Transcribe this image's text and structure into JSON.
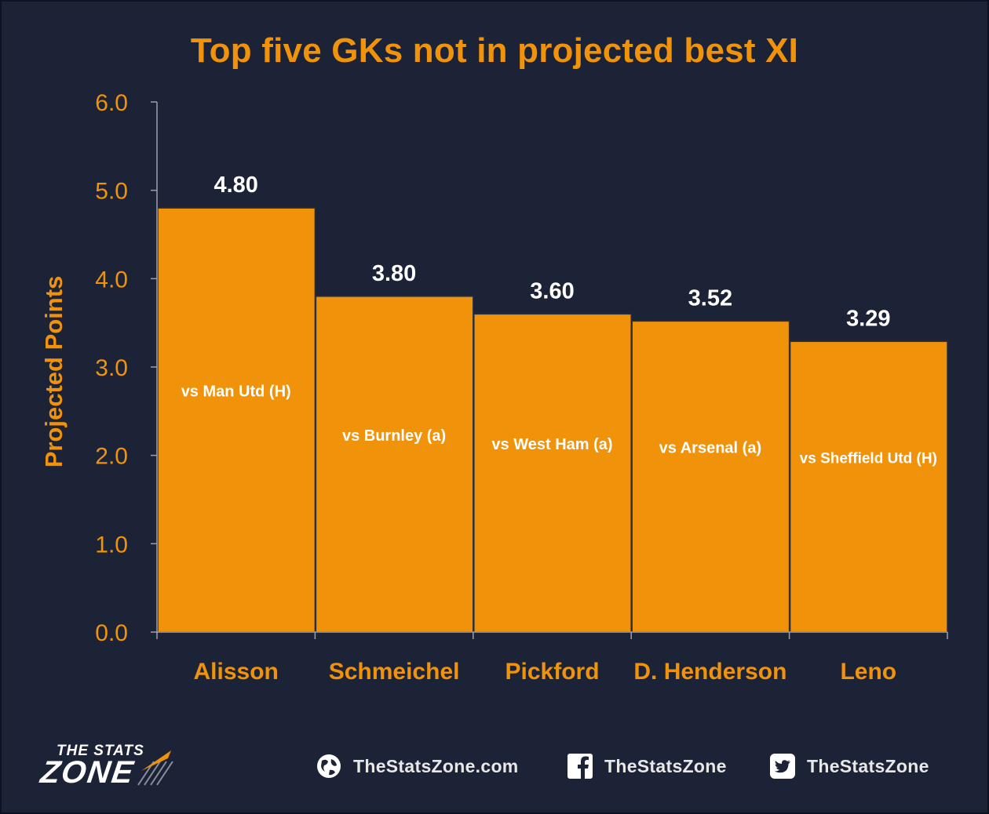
{
  "chart_data": {
    "type": "bar",
    "title": "Top five GKs not in projected best XI",
    "xlabel": "",
    "ylabel": "Projected Points",
    "ylim": [
      0,
      6
    ],
    "yticks": [
      "0.0",
      "1.0",
      "2.0",
      "3.0",
      "4.0",
      "5.0",
      "6.0"
    ],
    "categories": [
      "Alisson",
      "Schmeichel",
      "Pickford",
      "D. Henderson",
      "Leno"
    ],
    "values": [
      4.8,
      3.8,
      3.6,
      3.52,
      3.29
    ],
    "value_labels": [
      "4.80",
      "3.80",
      "3.60",
      "3.52",
      "3.29"
    ],
    "fixtures": [
      "vs Man Utd (H)",
      "vs Burnley (a)",
      "vs West Ham (a)",
      "vs Arsenal (a)",
      "vs Sheffield Utd (H)"
    ],
    "grid": false,
    "legend": "none",
    "colors": {
      "background": "#1c2336",
      "bar": "#f0930b",
      "bar_edge": "#2a2f40",
      "axis": "#9aa0ad",
      "accent_text": "#f0930b",
      "value_text": "#ffffff"
    }
  },
  "footer": {
    "logo_top": "THE STATS",
    "logo_bottom": "ZONE",
    "website": "TheStatsZone.com",
    "facebook": "TheStatsZone",
    "twitter": "TheStatsZone",
    "icons": [
      "globe-icon",
      "facebook-icon",
      "twitter-icon"
    ]
  }
}
